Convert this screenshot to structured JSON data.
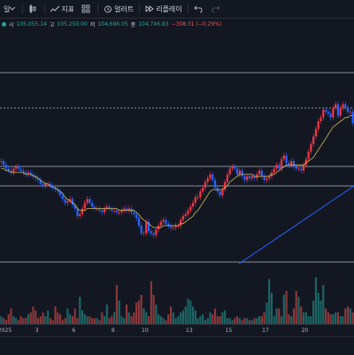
{
  "toolbar": {
    "interval_partial": "일",
    "indicators_label": "지표",
    "alerts_label": "얼러트",
    "replay_label": "리플레이"
  },
  "legend": {
    "open_label": "시",
    "open_value": "105,055.14",
    "high_label": "고",
    "high_value": "105,250.00",
    "low_label": "저",
    "low_value": "104,696.05",
    "close_label": "종",
    "close_value": "104,746.83",
    "change_value": "−308.31 (−0.29%)"
  },
  "colors": {
    "background": "#131722",
    "up": "#26a69a",
    "down": "#ef5350",
    "candle_up": "#2962ff",
    "candle_down": "#f23645",
    "ma": "#c9b458",
    "trendline": "#2962ff",
    "hline": "#b2b5be"
  },
  "x_axis": {
    "ticks": [
      "2025",
      "3",
      "6",
      "8",
      "10",
      "13",
      "15",
      "17",
      "20"
    ]
  },
  "chart_data": {
    "type": "candlestick",
    "closes": [
      62,
      60,
      58,
      57,
      56,
      58,
      59,
      58,
      57,
      56,
      55,
      56,
      55,
      54,
      53,
      52,
      50,
      49,
      50,
      50,
      49,
      48,
      47,
      46,
      44,
      42,
      40,
      41,
      42,
      39,
      37,
      33,
      34,
      37,
      40,
      42,
      40,
      38,
      37,
      37,
      36,
      35,
      37,
      38,
      37,
      36,
      36,
      35,
      35,
      36,
      37,
      36,
      37,
      35,
      34,
      32,
      28,
      24,
      24,
      30,
      25,
      24,
      23,
      26,
      28,
      30,
      31,
      29,
      28,
      27,
      27,
      28,
      28,
      31,
      33,
      34,
      36,
      38,
      40,
      43,
      43,
      46,
      48,
      51,
      53,
      55,
      52,
      48,
      46,
      44,
      47,
      51,
      55,
      58,
      59,
      58,
      55,
      57,
      54,
      52,
      54,
      53,
      54,
      53,
      55,
      57,
      54,
      52,
      53,
      54,
      56,
      58,
      60,
      58,
      63,
      65,
      61,
      60,
      62,
      59,
      58,
      58,
      57,
      60,
      63,
      67,
      71,
      75,
      79,
      83,
      85,
      89,
      88,
      87,
      85,
      90,
      92,
      86,
      90,
      92,
      90,
      88,
      88,
      82
    ],
    "ma": [
      58,
      58,
      57,
      57,
      56,
      56,
      56,
      56,
      56,
      56,
      55,
      55,
      55,
      54,
      54,
      53,
      52,
      51,
      50,
      50,
      49,
      48,
      48,
      47,
      46,
      45,
      43,
      42,
      41,
      40,
      39,
      37,
      36,
      36,
      36,
      37,
      37,
      37,
      37,
      37,
      37,
      37,
      37,
      37,
      37,
      37,
      37,
      37,
      36,
      36,
      36,
      36,
      36,
      36,
      36,
      35,
      34,
      32,
      31,
      30,
      29,
      28,
      27,
      27,
      27,
      27,
      28,
      28,
      28,
      28,
      28,
      28,
      28,
      29,
      29,
      30,
      31,
      32,
      33,
      35,
      36,
      38,
      40,
      42,
      44,
      46,
      47,
      47,
      47,
      47,
      47,
      48,
      49,
      51,
      52,
      53,
      54,
      55,
      55,
      55,
      55,
      55,
      55,
      54,
      54,
      54,
      54,
      54,
      54,
      54,
      55,
      55,
      56,
      57,
      58,
      59,
      60,
      60,
      60,
      60,
      60,
      60,
      60,
      60,
      61,
      62,
      63,
      64,
      66,
      68,
      70,
      72,
      74,
      76,
      78,
      80,
      81,
      82,
      83,
      84,
      85,
      85,
      86,
      86
    ],
    "volume": [
      4,
      3,
      2,
      5,
      8,
      4,
      3,
      2,
      4,
      3,
      3,
      5,
      6,
      9,
      7,
      3,
      4,
      6,
      4,
      7,
      3,
      2,
      9,
      6,
      5,
      2,
      3,
      8,
      5,
      4,
      8,
      3,
      14,
      7,
      5,
      4,
      4,
      3,
      3,
      3,
      2,
      6,
      4,
      10,
      3,
      4,
      6,
      20,
      12,
      4,
      3,
      10,
      6,
      4,
      6,
      11,
      12,
      15,
      8,
      6,
      4,
      22,
      15,
      10,
      5,
      4,
      3,
      2,
      5,
      9,
      6,
      3,
      4,
      6,
      7,
      9,
      13,
      12,
      9,
      7,
      3,
      4,
      5,
      2,
      3,
      6,
      5,
      8,
      4,
      4,
      6,
      7,
      3,
      3,
      2,
      3,
      4,
      3,
      2,
      3,
      3,
      2,
      2,
      3,
      3,
      4,
      4,
      6,
      11,
      23,
      16,
      4,
      8,
      8,
      4,
      15,
      17,
      5,
      4,
      8,
      17,
      14,
      9,
      6,
      6,
      4,
      4,
      12,
      24,
      16,
      12,
      20,
      8,
      6,
      5,
      5,
      6,
      6,
      4,
      4,
      8,
      9,
      8,
      6
    ],
    "hlines": [
      82,
      122,
      188,
      210,
      296
    ],
    "trendline": {
      "from": [
        0.675,
        298
      ],
      "to": [
        1.0,
        210
      ]
    },
    "note": "values are relative chart units read from the plot; no price scale is visible"
  }
}
